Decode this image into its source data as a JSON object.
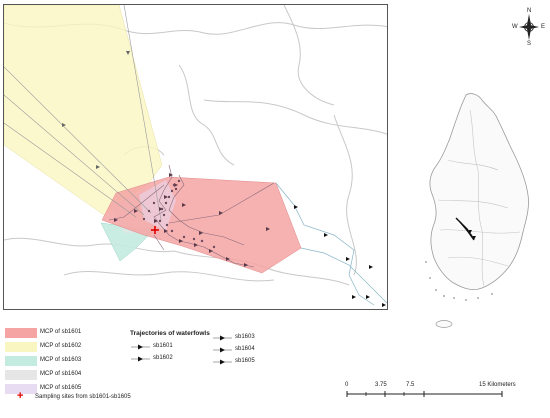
{
  "compass": {
    "n": "N",
    "s": "S",
    "e": "E",
    "w": "W"
  },
  "legend": {
    "mcp": [
      {
        "label": "MCP of sb1601",
        "color": "#f5a3a3"
      },
      {
        "label": "MCP of sb1602",
        "color": "#faf6c2"
      },
      {
        "label": "MCP of sb1603",
        "color": "#c3ebe0"
      },
      {
        "label": "MCP of sb1604",
        "color": "#e6e6e6"
      },
      {
        "label": "MCP of sb1605",
        "color": "#e8dcf3"
      }
    ],
    "trajectories_title": "Trajectories of waterfowls",
    "trajectories": [
      {
        "label": "sb1601"
      },
      {
        "label": "sb1602"
      },
      {
        "label": "sb1603"
      },
      {
        "label": "sb1604"
      },
      {
        "label": "sb1605"
      }
    ],
    "sampling_label": "Sampling sites from sb1601-sb1605",
    "sampling_color": "#e00000"
  },
  "scalebar": {
    "ticks": [
      "0",
      "3.75",
      "7.5",
      "15 Kilometers"
    ]
  }
}
